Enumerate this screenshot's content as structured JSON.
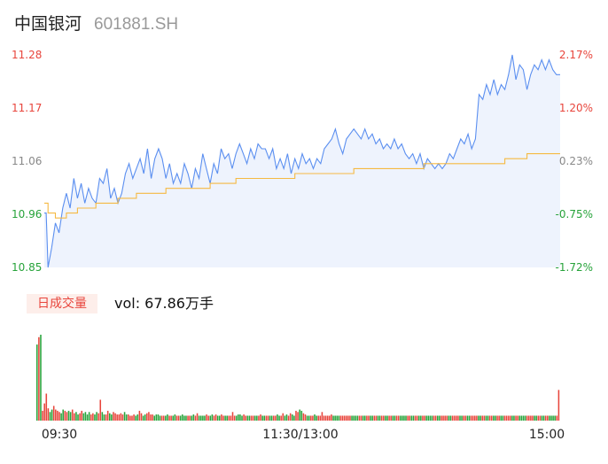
{
  "stock": {
    "name": "中国银河",
    "code": "601881.SH"
  },
  "volume_tab": {
    "label": "日成交量"
  },
  "volume_summary": {
    "prefix": "vol: ",
    "value": "67.86",
    "unit": "万手",
    "text": "vol: 67.86万手"
  },
  "colors": {
    "price_line": "#5b8ff0",
    "price_fill": "#eef3fd",
    "avg_line": "#f5b942",
    "up": "#e8453c",
    "down": "#27a33a",
    "neutral": "#888888"
  },
  "chart_data": [
    {
      "type": "line",
      "x_ticks": [
        "09:30",
        "11:30/13:00",
        "15:00"
      ],
      "y_left_ticks": [
        "11.28",
        "11.17",
        "11.06",
        "10.96",
        "10.85"
      ],
      "y_right_ticks": [
        "2.17%",
        "1.20%",
        "0.23%",
        "-0.75%",
        "-1.72%"
      ],
      "ylim": [
        10.85,
        11.28
      ],
      "prev_close": 11.04,
      "series": [
        {
          "role": "price",
          "points": [
            [
              0,
              10.96
            ],
            [
              1,
              10.96
            ],
            [
              2,
              10.85
            ],
            [
              4,
              10.89
            ],
            [
              6,
              10.94
            ],
            [
              8,
              10.92
            ],
            [
              10,
              10.97
            ],
            [
              12,
              11.0
            ],
            [
              14,
              10.97
            ],
            [
              16,
              11.03
            ],
            [
              18,
              10.99
            ],
            [
              20,
              11.02
            ],
            [
              22,
              10.98
            ],
            [
              24,
              11.01
            ],
            [
              26,
              10.99
            ],
            [
              28,
              10.98
            ],
            [
              30,
              11.03
            ],
            [
              32,
              11.02
            ],
            [
              34,
              11.05
            ],
            [
              36,
              10.99
            ],
            [
              38,
              11.01
            ],
            [
              40,
              10.98
            ],
            [
              42,
              11.0
            ],
            [
              44,
              11.04
            ],
            [
              46,
              11.06
            ],
            [
              48,
              11.03
            ],
            [
              50,
              11.05
            ],
            [
              52,
              11.07
            ],
            [
              54,
              11.04
            ],
            [
              56,
              11.09
            ],
            [
              58,
              11.03
            ],
            [
              60,
              11.07
            ],
            [
              62,
              11.09
            ],
            [
              64,
              11.07
            ],
            [
              66,
              11.03
            ],
            [
              68,
              11.06
            ],
            [
              70,
              11.02
            ],
            [
              72,
              11.04
            ],
            [
              74,
              11.02
            ],
            [
              76,
              11.06
            ],
            [
              78,
              11.04
            ],
            [
              80,
              11.01
            ],
            [
              82,
              11.05
            ],
            [
              84,
              11.03
            ],
            [
              86,
              11.08
            ],
            [
              88,
              11.05
            ],
            [
              90,
              11.02
            ],
            [
              92,
              11.06
            ],
            [
              94,
              11.04
            ],
            [
              96,
              11.09
            ],
            [
              98,
              11.07
            ],
            [
              100,
              11.08
            ],
            [
              102,
              11.05
            ],
            [
              104,
              11.08
            ],
            [
              106,
              11.1
            ],
            [
              108,
              11.08
            ],
            [
              110,
              11.06
            ],
            [
              112,
              11.09
            ],
            [
              114,
              11.07
            ],
            [
              116,
              11.1
            ],
            [
              118,
              11.09
            ],
            [
              120,
              11.09
            ],
            [
              122,
              11.07
            ],
            [
              124,
              11.09
            ],
            [
              126,
              11.05
            ],
            [
              128,
              11.07
            ],
            [
              130,
              11.05
            ],
            [
              132,
              11.08
            ],
            [
              134,
              11.04
            ],
            [
              136,
              11.07
            ],
            [
              138,
              11.05
            ],
            [
              140,
              11.08
            ],
            [
              142,
              11.06
            ],
            [
              144,
              11.07
            ],
            [
              146,
              11.05
            ],
            [
              148,
              11.07
            ],
            [
              150,
              11.06
            ],
            [
              152,
              11.09
            ],
            [
              154,
              11.1
            ],
            [
              156,
              11.11
            ],
            [
              158,
              11.13
            ],
            [
              160,
              11.1
            ],
            [
              162,
              11.08
            ],
            [
              164,
              11.11
            ],
            [
              166,
              11.12
            ],
            [
              168,
              11.13
            ],
            [
              170,
              11.12
            ],
            [
              172,
              11.11
            ],
            [
              174,
              11.13
            ],
            [
              176,
              11.11
            ],
            [
              178,
              11.12
            ],
            [
              180,
              11.1
            ],
            [
              182,
              11.11
            ],
            [
              184,
              11.09
            ],
            [
              186,
              11.1
            ],
            [
              188,
              11.09
            ],
            [
              190,
              11.11
            ],
            [
              192,
              11.09
            ],
            [
              194,
              11.1
            ],
            [
              196,
              11.08
            ],
            [
              198,
              11.07
            ],
            [
              200,
              11.08
            ],
            [
              202,
              11.06
            ],
            [
              204,
              11.08
            ],
            [
              206,
              11.05
            ],
            [
              208,
              11.07
            ],
            [
              210,
              11.06
            ],
            [
              212,
              11.05
            ],
            [
              214,
              11.06
            ],
            [
              216,
              11.05
            ],
            [
              218,
              11.06
            ],
            [
              220,
              11.08
            ],
            [
              222,
              11.07
            ],
            [
              224,
              11.09
            ],
            [
              226,
              11.11
            ],
            [
              228,
              11.1
            ],
            [
              230,
              11.12
            ],
            [
              232,
              11.09
            ],
            [
              234,
              11.11
            ],
            [
              236,
              11.2
            ],
            [
              238,
              11.19
            ],
            [
              240,
              11.22
            ],
            [
              242,
              11.2
            ],
            [
              244,
              11.23
            ],
            [
              246,
              11.2
            ],
            [
              248,
              11.22
            ],
            [
              250,
              11.21
            ],
            [
              252,
              11.24
            ],
            [
              254,
              11.28
            ],
            [
              256,
              11.23
            ],
            [
              258,
              11.26
            ],
            [
              260,
              11.25
            ],
            [
              262,
              11.21
            ],
            [
              264,
              11.24
            ],
            [
              266,
              11.26
            ],
            [
              268,
              11.25
            ],
            [
              270,
              11.27
            ],
            [
              272,
              11.25
            ],
            [
              274,
              11.27
            ],
            [
              276,
              11.25
            ],
            [
              278,
              11.24
            ],
            [
              280,
              11.24
            ]
          ]
        },
        {
          "role": "average",
          "points": [
            [
              0,
              10.98
            ],
            [
              2,
              10.96
            ],
            [
              6,
              10.95
            ],
            [
              12,
              10.96
            ],
            [
              18,
              10.97
            ],
            [
              28,
              10.98
            ],
            [
              40,
              10.99
            ],
            [
              50,
              11.0
            ],
            [
              66,
              11.01
            ],
            [
              90,
              11.02
            ],
            [
              104,
              11.03
            ],
            [
              136,
              11.04
            ],
            [
              168,
              11.05
            ],
            [
              202,
              11.05
            ],
            [
              206,
              11.06
            ],
            [
              216,
              11.06
            ],
            [
              230,
              11.06
            ],
            [
              250,
              11.07
            ],
            [
              262,
              11.08
            ],
            [
              280,
              11.08
            ]
          ]
        }
      ]
    },
    {
      "type": "bar",
      "title": "日成交量",
      "series": [
        {
          "role": "volume",
          "values": [
            62,
            68,
            70,
            8,
            14,
            22,
            10,
            7,
            9,
            12,
            9,
            8,
            7,
            6,
            9,
            8,
            7,
            8,
            7,
            9,
            6,
            7,
            5,
            6,
            8,
            6,
            7,
            5,
            7,
            5,
            6,
            5,
            7,
            6,
            17,
            7,
            5,
            5,
            8,
            6,
            5,
            7,
            6,
            5,
            5,
            6,
            5,
            7,
            5,
            5,
            4,
            4,
            5,
            4,
            5,
            8,
            6,
            4,
            5,
            6,
            7,
            5,
            5,
            4,
            5,
            5,
            4,
            4,
            4,
            4,
            5,
            4,
            4,
            4,
            5,
            4,
            4,
            4,
            5,
            4,
            4,
            4,
            4,
            4,
            5,
            4,
            6,
            4,
            4,
            4,
            4,
            5,
            4,
            4,
            5,
            4,
            5,
            4,
            4,
            5,
            4,
            4,
            4,
            4,
            4,
            7,
            4,
            4,
            5,
            5,
            4,
            5,
            4,
            4,
            4,
            4,
            4,
            4,
            4,
            4,
            5,
            4,
            4,
            4,
            4,
            4,
            4,
            4,
            4,
            5,
            4,
            4,
            6,
            4,
            5,
            4,
            6,
            5,
            4,
            8,
            7,
            9,
            8,
            6,
            5,
            4,
            4,
            4,
            4,
            5,
            4,
            4,
            4,
            7,
            4,
            4,
            4,
            4,
            5,
            4,
            4,
            4,
            4,
            4,
            4,
            4,
            4,
            4,
            4,
            4,
            4,
            4,
            4,
            4,
            4,
            4,
            4,
            4,
            4,
            4,
            4,
            4,
            4,
            4,
            4,
            4,
            4,
            4,
            4,
            4,
            4,
            4,
            4,
            4,
            4,
            4,
            4,
            4,
            4,
            4,
            4,
            4,
            4,
            4,
            4,
            4,
            4,
            4,
            4,
            4,
            4,
            4,
            4,
            4,
            4,
            4,
            4,
            4,
            4,
            4,
            4,
            4,
            4,
            4,
            4,
            4,
            4,
            4,
            4,
            4,
            4,
            4,
            4,
            4,
            4,
            4,
            4,
            4,
            4,
            4,
            4,
            4,
            4,
            4,
            4,
            4,
            4,
            4,
            4,
            4,
            4,
            4,
            4,
            4,
            4,
            4,
            4,
            4,
            4,
            4,
            4,
            4,
            4,
            4,
            4,
            4,
            4,
            4,
            4,
            4,
            4,
            4,
            4,
            4,
            4,
            4,
            4,
            4,
            4,
            4,
            25
          ]
        }
      ]
    }
  ]
}
